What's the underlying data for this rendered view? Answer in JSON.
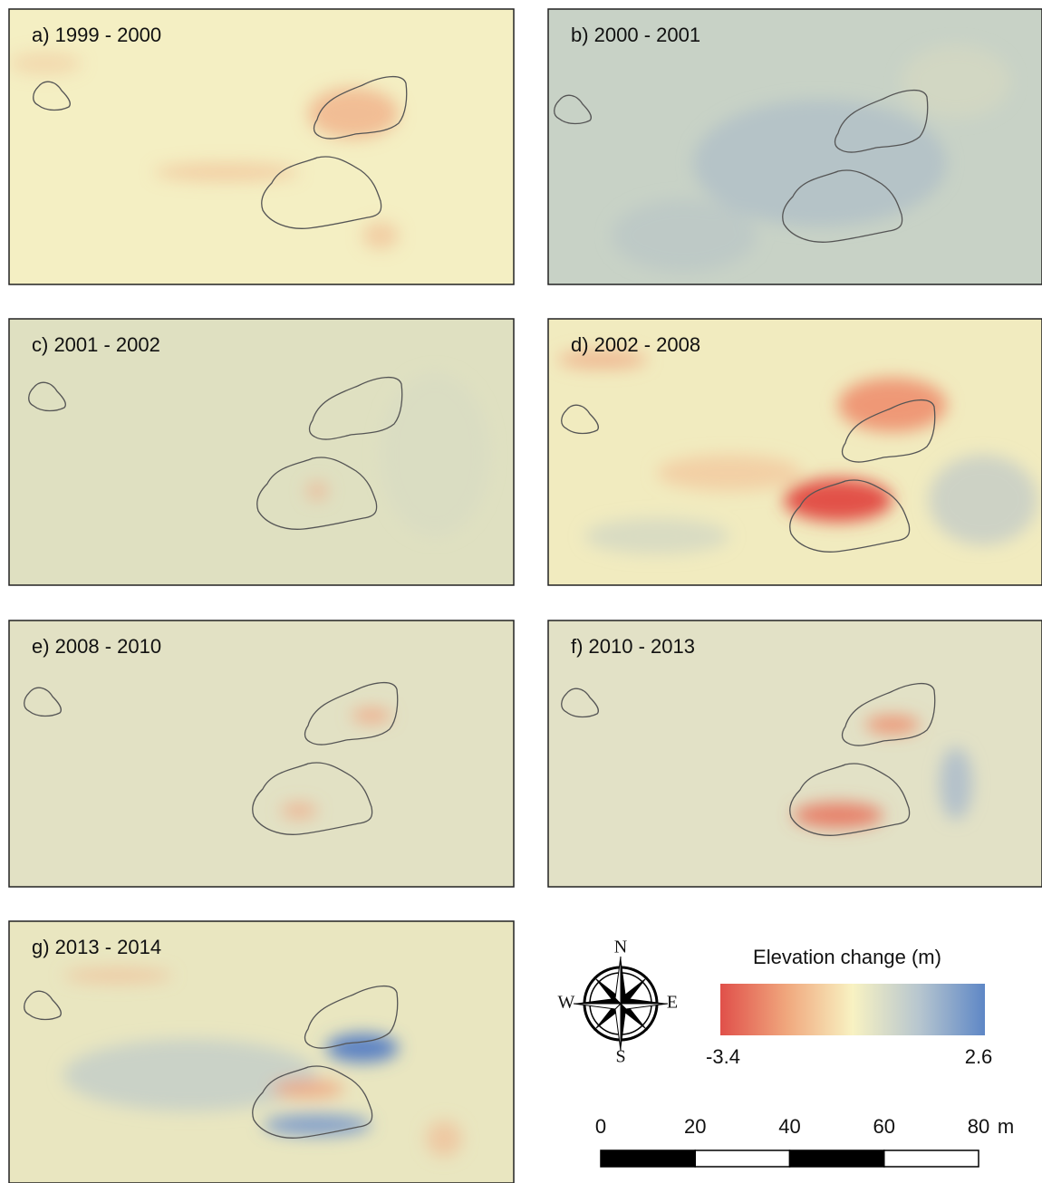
{
  "panels": [
    {
      "label": "a) 1999 - 2000"
    },
    {
      "label": "b) 2000 - 2001"
    },
    {
      "label": "c) 2001 - 2002"
    },
    {
      "label": "d) 2002 - 2008"
    },
    {
      "label": "e) 2008 - 2010"
    },
    {
      "label": "f) 2010 - 2013"
    },
    {
      "label": "g) 2013 - 2014"
    }
  ],
  "legend": {
    "title": "Elevation change (m)",
    "min": -3.4,
    "max": 2.6
  },
  "compass": {
    "north": "N",
    "south": "S",
    "west": "W",
    "east": "E"
  },
  "scale_bar": {
    "ticks": [
      0,
      20,
      40,
      60,
      80
    ],
    "unit": "m"
  }
}
